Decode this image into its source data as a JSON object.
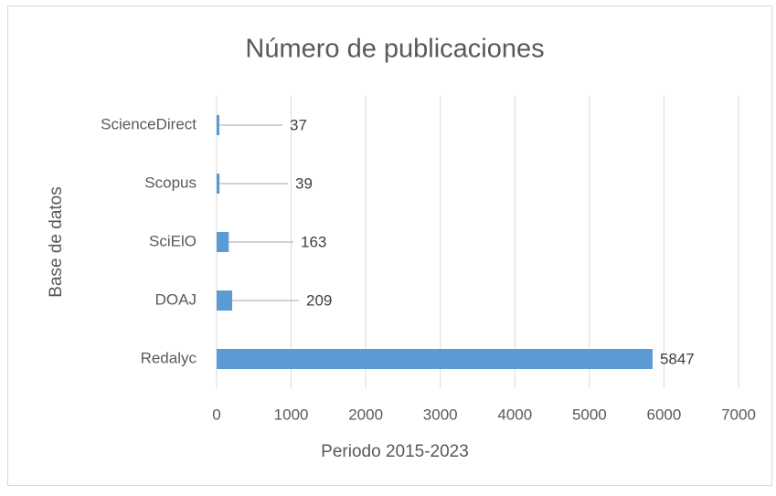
{
  "chart_data": {
    "type": "barh",
    "title": "Número de publicaciones",
    "xlabel": "Periodo 2015-2023",
    "ylabel": "Base de datos",
    "categories": [
      "ScienceDirect",
      "Scopus",
      "SciElO",
      "DOAJ",
      "Redalyc"
    ],
    "values": [
      37,
      39,
      163,
      209,
      5847
    ],
    "color": "#5b9bd5",
    "xlim": [
      0,
      7000
    ],
    "xticks": [
      0,
      1000,
      2000,
      3000,
      4000,
      5000,
      6000,
      7000
    ],
    "grid": true
  }
}
